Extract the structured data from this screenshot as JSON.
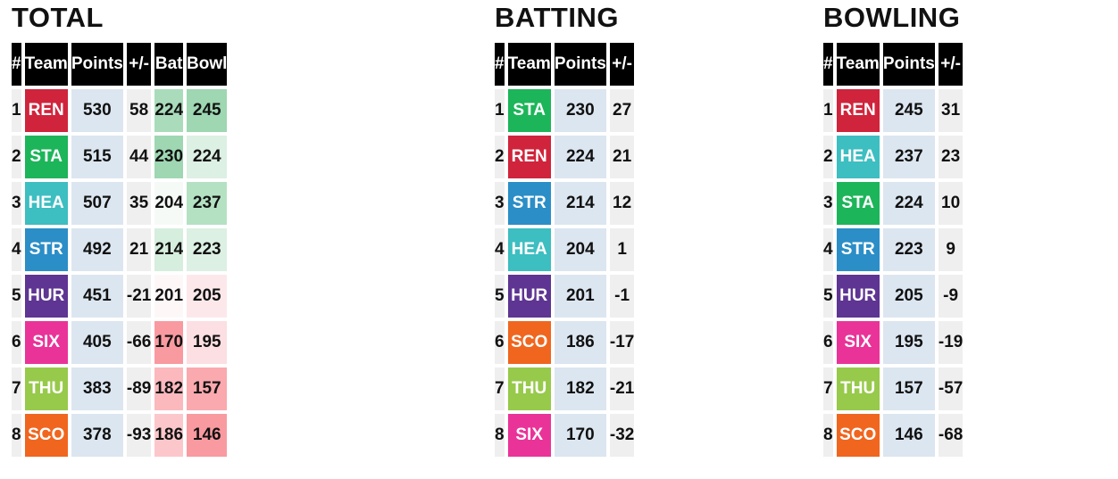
{
  "team_colors": {
    "REN": "#d0243c",
    "STA": "#1db55a",
    "HEA": "#3dbec1",
    "STR": "#2b8ec7",
    "HUR": "#5e3592",
    "SIX": "#ea3398",
    "THU": "#97c94b",
    "SCO": "#f0661f"
  },
  "chart_data": [
    {
      "type": "table",
      "title": "TOTAL",
      "columns": [
        "#",
        "Team",
        "Points",
        "+/-",
        "Bat",
        "Bowl"
      ],
      "rows": [
        {
          "rank": "1",
          "team": "REN",
          "points": "530",
          "diff": "58",
          "bat": "224",
          "bowl": "245",
          "bat_color": "#aadcbb",
          "bowl_color": "#9ed7b2"
        },
        {
          "rank": "2",
          "team": "STA",
          "points": "515",
          "diff": "44",
          "bat": "230",
          "bowl": "224",
          "bat_color": "#9ed7b2",
          "bowl_color": "#dcf0e3"
        },
        {
          "rank": "3",
          "team": "HEA",
          "points": "507",
          "diff": "35",
          "bat": "204",
          "bowl": "237",
          "bat_color": "#f6faf7",
          "bowl_color": "#b5e1c3"
        },
        {
          "rank": "4",
          "team": "STR",
          "points": "492",
          "diff": "21",
          "bat": "214",
          "bowl": "223",
          "bat_color": "#d6eedd",
          "bowl_color": "#dcf0e3"
        },
        {
          "rank": "5",
          "team": "HUR",
          "points": "451",
          "diff": "-21",
          "bat": "201",
          "bowl": "205",
          "bat_color": "#fdf7f8",
          "bowl_color": "#fce8eb"
        },
        {
          "rank": "6",
          "team": "SIX",
          "points": "405",
          "diff": "-66",
          "bat": "170",
          "bowl": "195",
          "bat_color": "#f99aa0",
          "bowl_color": "#fcdfe2"
        },
        {
          "rank": "7",
          "team": "THU",
          "points": "383",
          "diff": "-89",
          "bat": "182",
          "bowl": "157",
          "bat_color": "#fbb9be",
          "bowl_color": "#faa9ae"
        },
        {
          "rank": "8",
          "team": "SCO",
          "points": "378",
          "diff": "-93",
          "bat": "186",
          "bowl": "146",
          "bat_color": "#fcc7cb",
          "bowl_color": "#f99aa0"
        }
      ]
    },
    {
      "type": "table",
      "title": "BATTING",
      "columns": [
        "#",
        "Team",
        "Points",
        "+/-"
      ],
      "rows": [
        {
          "rank": "1",
          "team": "STA",
          "points": "230",
          "diff": "27"
        },
        {
          "rank": "2",
          "team": "REN",
          "points": "224",
          "diff": "21"
        },
        {
          "rank": "3",
          "team": "STR",
          "points": "214",
          "diff": "12"
        },
        {
          "rank": "4",
          "team": "HEA",
          "points": "204",
          "diff": "1"
        },
        {
          "rank": "5",
          "team": "HUR",
          "points": "201",
          "diff": "-1"
        },
        {
          "rank": "6",
          "team": "SCO",
          "points": "186",
          "diff": "-17"
        },
        {
          "rank": "7",
          "team": "THU",
          "points": "182",
          "diff": "-21"
        },
        {
          "rank": "8",
          "team": "SIX",
          "points": "170",
          "diff": "-32"
        }
      ]
    },
    {
      "type": "table",
      "title": "BOWLING",
      "columns": [
        "#",
        "Team",
        "Points",
        "+/-"
      ],
      "rows": [
        {
          "rank": "1",
          "team": "REN",
          "points": "245",
          "diff": "31"
        },
        {
          "rank": "2",
          "team": "HEA",
          "points": "237",
          "diff": "23"
        },
        {
          "rank": "3",
          "team": "STA",
          "points": "224",
          "diff": "10"
        },
        {
          "rank": "4",
          "team": "STR",
          "points": "223",
          "diff": "9"
        },
        {
          "rank": "5",
          "team": "HUR",
          "points": "205",
          "diff": "-9"
        },
        {
          "rank": "6",
          "team": "SIX",
          "points": "195",
          "diff": "-19"
        },
        {
          "rank": "7",
          "team": "THU",
          "points": "157",
          "diff": "-57"
        },
        {
          "rank": "8",
          "team": "SCO",
          "points": "146",
          "diff": "-68"
        }
      ]
    }
  ]
}
